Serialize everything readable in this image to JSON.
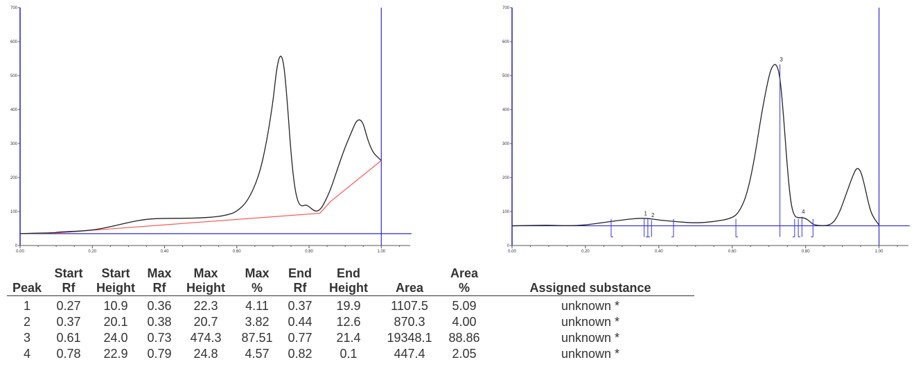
{
  "chart_data": [
    {
      "type": "line",
      "name": "raw-densitogram",
      "xlim": [
        0,
        1.08
      ],
      "ylim": [
        0,
        700
      ],
      "x_ticks": [
        "0.00",
        "0.20",
        "0.40",
        "0.60",
        "0.80",
        "1.00"
      ],
      "y_ticks": [
        "0",
        "100",
        "200",
        "300",
        "400",
        "500",
        "600",
        "700"
      ],
      "vertical_line_x": 1.0,
      "horizontal_line_y": 35,
      "curve": {
        "x": [
          0,
          0.03,
          0.06,
          0.09,
          0.11,
          0.14,
          0.2,
          0.25,
          0.3,
          0.35,
          0.4,
          0.45,
          0.5,
          0.55,
          0.58,
          0.6,
          0.63,
          0.66,
          0.68,
          0.7,
          0.71,
          0.72,
          0.73,
          0.74,
          0.75,
          0.76,
          0.77,
          0.78,
          0.79,
          0.8,
          0.81,
          0.82,
          0.83,
          0.84,
          0.86,
          0.88,
          0.9,
          0.92,
          0.93,
          0.94,
          0.95,
          0.96,
          0.97,
          0.98,
          0.99,
          1.0
        ],
        "y": [
          35,
          36,
          37,
          37,
          40,
          41,
          45,
          55,
          68,
          78,
          80,
          80,
          81,
          85,
          92,
          100,
          130,
          200,
          290,
          420,
          520,
          565,
          540,
          420,
          270,
          170,
          125,
          115,
          120,
          115,
          105,
          100,
          105,
          120,
          165,
          230,
          290,
          340,
          365,
          372,
          360,
          320,
          290,
          270,
          260,
          250
        ]
      },
      "baseline": {
        "x": [
          0,
          0.1,
          0.83,
          0.86,
          1.0
        ],
        "y": [
          35,
          37,
          95,
          130,
          250
        ]
      },
      "colors": {
        "curve": "#222222",
        "baseline": "#ff5555",
        "axes": "#2a2ad6",
        "markers": "#3333ee"
      }
    },
    {
      "type": "line",
      "name": "integrated-densitogram",
      "xlim": [
        0,
        1.08
      ],
      "ylim": [
        0,
        700
      ],
      "x_ticks": [
        "0.00",
        "0.20",
        "0.40",
        "0.60",
        "0.80",
        "1.00"
      ],
      "y_ticks": [
        "0",
        "100",
        "200",
        "300",
        "400",
        "500",
        "600",
        "700"
      ],
      "vertical_line_x": 1.0,
      "horizontal_line_y": 58,
      "curve": {
        "x": [
          0,
          0.05,
          0.1,
          0.15,
          0.2,
          0.25,
          0.3,
          0.34,
          0.37,
          0.4,
          0.45,
          0.5,
          0.55,
          0.6,
          0.62,
          0.64,
          0.66,
          0.68,
          0.7,
          0.71,
          0.72,
          0.73,
          0.74,
          0.75,
          0.76,
          0.77,
          0.78,
          0.79,
          0.8,
          0.81,
          0.82,
          0.84,
          0.87,
          0.89,
          0.91,
          0.93,
          0.94,
          0.95,
          0.96,
          0.97,
          0.98,
          1.0
        ],
        "y": [
          58,
          59,
          60,
          58,
          60,
          68,
          75,
          80,
          80,
          75,
          70,
          66,
          70,
          80,
          100,
          150,
          250,
          390,
          500,
          530,
          535,
          500,
          380,
          230,
          120,
          85,
          82,
          82,
          80,
          72,
          62,
          58,
          60,
          90,
          150,
          210,
          230,
          220,
          180,
          130,
          90,
          60
        ]
      },
      "peaks": [
        {
          "label": "1",
          "start_rf": 0.27,
          "max_rf": 0.36,
          "end_rf": 0.37
        },
        {
          "label": "2",
          "start_rf": 0.37,
          "max_rf": 0.38,
          "end_rf": 0.44
        },
        {
          "label": "3",
          "start_rf": 0.61,
          "max_rf": 0.73,
          "end_rf": 0.77
        },
        {
          "label": "4",
          "start_rf": 0.78,
          "max_rf": 0.79,
          "end_rf": 0.82
        }
      ],
      "peak_label_y": {
        "1": 85,
        "2": 80,
        "3": 538,
        "4": 90
      },
      "colors": {
        "curve": "#222222",
        "baseline": "#3333ee",
        "axes": "#2a2ad6",
        "markers": "#3333ee"
      }
    }
  ],
  "table": {
    "header_lines": [
      [
        "",
        "Start",
        "Start",
        "Max",
        "Max",
        "Max",
        "End",
        "End",
        "",
        "Area",
        ""
      ],
      [
        "Peak",
        "Rf",
        "Height",
        "Rf",
        "Height",
        "%",
        "Rf",
        "Height",
        "Area",
        "%",
        "Assigned substance"
      ]
    ],
    "rows": [
      [
        "1",
        "0.27",
        "10.9",
        "0.36",
        "22.3",
        "4.11",
        "0.37",
        "19.9",
        "1107.5",
        "5.09",
        "unknown *"
      ],
      [
        "2",
        "0.37",
        "20.1",
        "0.38",
        "20.7",
        "3.82",
        "0.44",
        "12.6",
        "870.3",
        "4.00",
        "unknown *"
      ],
      [
        "3",
        "0.61",
        "24.0",
        "0.73",
        "474.3",
        "87.51",
        "0.77",
        "21.4",
        "19348.1",
        "88.86",
        "unknown *"
      ],
      [
        "4",
        "0.78",
        "22.9",
        "0.79",
        "24.8",
        "4.57",
        "0.82",
        "0.1",
        "447.4",
        "2.05",
        "unknown *"
      ]
    ]
  }
}
